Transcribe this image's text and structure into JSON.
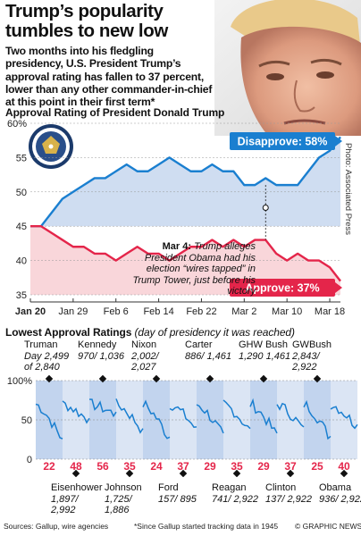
{
  "headline": "Trump’s popularity tumbles to new low",
  "intro": "Two months into his fledgling presidency, U.S. President Trump’s approval rating has fallen to 37 percent, lower than any other commander-in-chief at this point in their first term*",
  "credit": "Photo: Associated Press",
  "sources": "Sources: Gallup, wire agencies",
  "footnote": "*Since Gallup started tracking data in 1945",
  "copyright": "© GRAPHIC NEWS",
  "colors": {
    "disapprove": "#1a7fd0",
    "approve": "#e4254a",
    "approve_fill": "#f8d2d6",
    "panel": "#c7d7ef"
  },
  "chart_data": [
    {
      "type": "line",
      "title": "Approval Rating of President Donald Trump",
      "x": [
        "Jan 20",
        "Jan 22",
        "Jan 24",
        "Jan 26",
        "Jan 28",
        "Jan 30",
        "Feb 1",
        "Feb 3",
        "Feb 5",
        "Feb 7",
        "Feb 9",
        "Feb 11",
        "Feb 13",
        "Feb 15",
        "Feb 17",
        "Feb 19",
        "Feb 21",
        "Feb 23",
        "Feb 25",
        "Feb 27",
        "Mar 1",
        "Mar 3",
        "Mar 5",
        "Mar 7",
        "Mar 9",
        "Mar 11",
        "Mar 13",
        "Mar 15",
        "Mar 17",
        "Mar 19"
      ],
      "x_tick_labels": [
        "Jan 20",
        "Jan 29",
        "Feb 6",
        "Feb 14",
        "Feb 22",
        "Mar 2",
        "Mar 10",
        "Mar 18"
      ],
      "y_tick_labels": [
        "60%",
        "55",
        "50",
        "45",
        "40",
        "35"
      ],
      "ylim": [
        35,
        60
      ],
      "series": [
        {
          "name": "Disapprove",
          "label": "Disapprove: 58%",
          "values": [
            45,
            45,
            47,
            49,
            50,
            51,
            52,
            52,
            53,
            54,
            53,
            53,
            54,
            55,
            54,
            53,
            53,
            54,
            53,
            53,
            51,
            51,
            52,
            51,
            51,
            51,
            53,
            55,
            56,
            58
          ]
        },
        {
          "name": "Approve",
          "label": "Approve: 37%",
          "values": [
            45,
            45,
            44,
            43,
            42,
            42,
            41,
            41,
            40,
            41,
            42,
            41,
            41,
            40,
            41,
            42,
            42,
            43,
            42,
            43,
            42,
            43,
            43,
            41,
            40,
            41,
            40,
            40,
            39,
            37
          ]
        }
      ],
      "annotation": {
        "x": "Mar 4",
        "date_label": "Mar 4:",
        "text": "Trump alleges President Obama had his election “wires tapped” in Trump Tower, just before his victory"
      }
    },
    {
      "type": "line",
      "title": "Lowest Approval Ratings",
      "subtitle": "(day of presidency it was reached)",
      "y_tick_labels": [
        "100%",
        "50",
        "0"
      ],
      "ylim": [
        0,
        100
      ],
      "presidents": [
        {
          "name": "Truman",
          "lowest": 22,
          "day": "Day 2,499 of 2,840",
          "position": "top"
        },
        {
          "name": "Eisenhower",
          "lowest": 48,
          "day": "1,897/ 2,992",
          "position": "bottom"
        },
        {
          "name": "Kennedy",
          "lowest": 56,
          "day": "970/ 1,036",
          "position": "top"
        },
        {
          "name": "Johnson",
          "lowest": 35,
          "day": "1,725/ 1,886",
          "position": "bottom"
        },
        {
          "name": "Nixon",
          "lowest": 24,
          "day": "2,002/ 2,027",
          "position": "top"
        },
        {
          "name": "Ford",
          "lowest": 37,
          "day": "157/ 895",
          "position": "bottom"
        },
        {
          "name": "Carter",
          "lowest": 29,
          "day": "886/ 1,461",
          "position": "top"
        },
        {
          "name": "Reagan",
          "lowest": 35,
          "day": "741/ 2,922",
          "position": "bottom"
        },
        {
          "name": "GHW Bush",
          "lowest": 29,
          "day": "1,290 1,461",
          "position": "top"
        },
        {
          "name": "Clinton",
          "lowest": 37,
          "day": "137/ 2,922",
          "position": "bottom"
        },
        {
          "name": "GWBush",
          "lowest": 25,
          "day": "2,843/ 2,922",
          "position": "top"
        },
        {
          "name": "Obama",
          "lowest": 40,
          "day": "936/ 2,922",
          "position": "bottom"
        }
      ]
    }
  ]
}
